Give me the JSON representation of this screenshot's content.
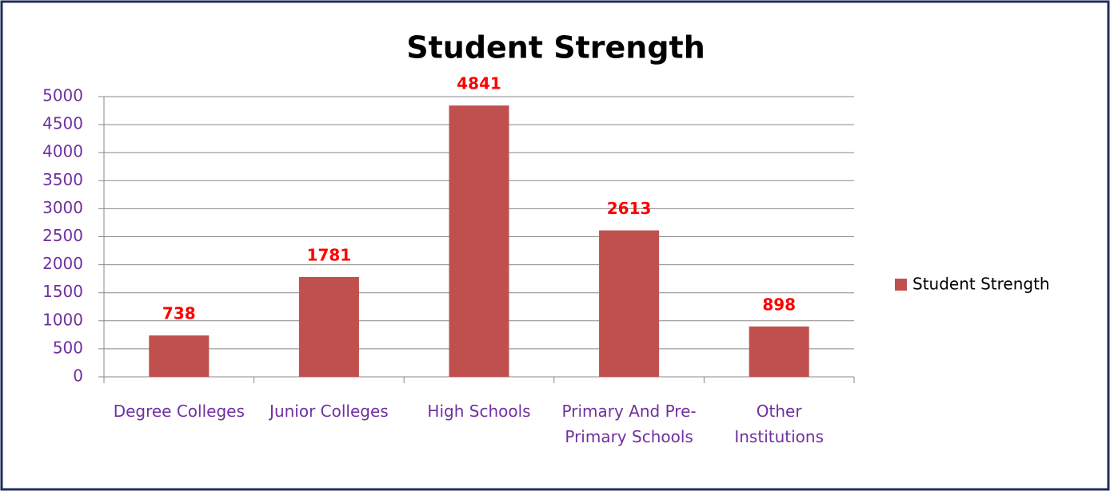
{
  "chart_data": {
    "type": "bar",
    "title": "Student Strength",
    "categories": [
      "Degree Colleges",
      "Junior Colleges",
      "High Schools",
      "Primary And Pre-Primary Schools",
      "Other Institutions"
    ],
    "series": [
      {
        "name": "Student Strength",
        "color": "#c0504d",
        "values": [
          738,
          1781,
          4841,
          2613,
          898
        ]
      }
    ],
    "ylim": [
      0,
      5000
    ],
    "yticks": [
      0,
      500,
      1000,
      1500,
      2000,
      2500,
      3000,
      3500,
      4000,
      4500,
      5000
    ],
    "grid": true,
    "legend": "right"
  }
}
